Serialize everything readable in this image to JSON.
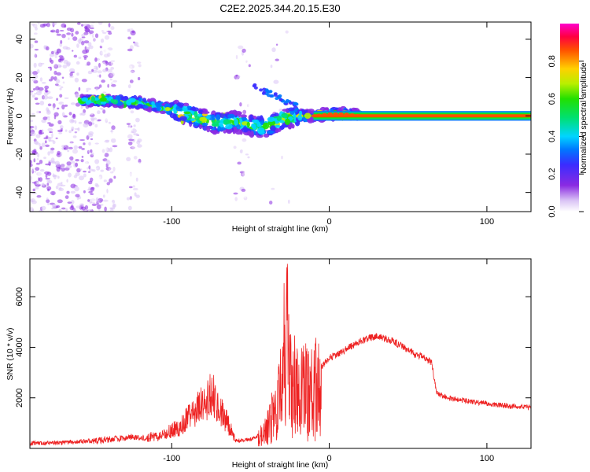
{
  "title": "C2E2.2025.344.20.15.E30",
  "chart_data": [
    {
      "type": "heatmap",
      "title": "C2E2.2025.344.20.15.E30",
      "xlabel": "Height of straight line (km)",
      "ylabel": "Frequency (Hz)",
      "xlim": [
        -190,
        128
      ],
      "ylim": [
        -50,
        49
      ],
      "xticks": [
        -100,
        0,
        100
      ],
      "yticks": [
        -40,
        -20,
        0,
        20,
        40
      ],
      "colorbar": {
        "label": "Normalized spectral amplitude",
        "range": [
          0,
          1
        ],
        "ticks": [
          "0.0",
          "0.2",
          "0.4",
          "0.6",
          "0.8"
        ],
        "tick_values": [
          0.0,
          0.2,
          0.4,
          0.6,
          0.8
        ]
      },
      "ridge": {
        "x": [
          -158,
          -140,
          -120,
          -100,
          -90,
          -80,
          -70,
          -60,
          -50,
          -40,
          -30,
          -20,
          -10,
          0,
          10,
          20,
          128
        ],
        "y": [
          8,
          8,
          7,
          3,
          1,
          -2,
          -4,
          -3,
          -5,
          -6,
          -2,
          0,
          0,
          1,
          1,
          0,
          0
        ]
      }
    },
    {
      "type": "line",
      "xlabel": "Height of straight line (km)",
      "ylabel": "SNR (10 * v/v)",
      "xlim": [
        -190,
        128
      ],
      "ylim": [
        0,
        7500
      ],
      "xticks": [
        -100,
        0,
        100
      ],
      "yticks": [
        2000,
        4000,
        6000
      ],
      "color": "#ee2222",
      "envelope": {
        "x": [
          -190,
          -160,
          -140,
          -125,
          -110,
          -95,
          -85,
          -75,
          -68,
          -60,
          -50,
          -45,
          -40,
          -35,
          -30,
          -27,
          -25,
          -20,
          -15,
          -10,
          -5,
          0,
          5,
          10,
          20,
          30,
          40,
          50,
          55,
          60,
          65,
          68,
          75,
          90,
          110,
          128
        ],
        "y": [
          200,
          250,
          350,
          450,
          350,
          700,
          1200,
          1800,
          1200,
          300,
          350,
          500,
          900,
          1800,
          3000,
          4800,
          3500,
          2800,
          2900,
          3000,
          3200,
          3600,
          3700,
          3900,
          4250,
          4450,
          4250,
          3900,
          3700,
          3600,
          3400,
          2200,
          2000,
          1850,
          1700,
          1600
        ]
      }
    }
  ]
}
